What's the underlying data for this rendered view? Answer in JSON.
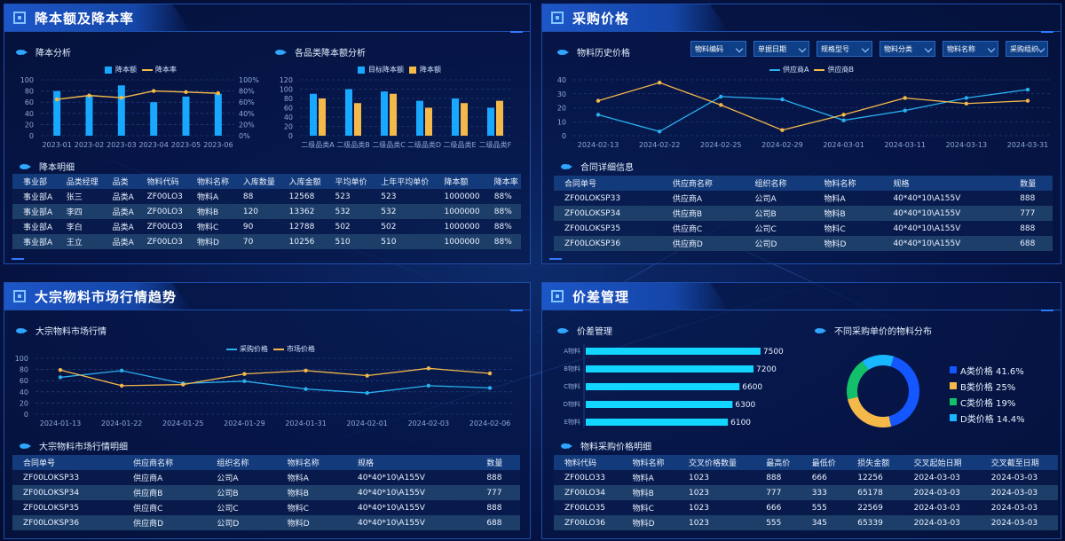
{
  "colors": {
    "blue": "#18a8ff",
    "yellow": "#f5b94a",
    "lineBlue": "#2ab0f0",
    "lineYellow": "#f5b94a",
    "barCyan": "#12d6ff"
  },
  "panels": {
    "p1_title": "降本额及降本率",
    "p2_title": "采购价格",
    "p3_title": "大宗物料市场行情趋势",
    "p4_title": "价差管理"
  },
  "subtitles": {
    "cost_analysis": "降本分析",
    "category_analysis": "各品类降本额分析",
    "cost_detail": "降本明细",
    "material_history": "物料历史价格",
    "contract_detail": "合同详细信息",
    "market_trend": "大宗物料市场行情",
    "market_detail": "大宗物料市场行情明细",
    "price_diff": "价差管理",
    "price_distribution": "不同采购单价的物料分布",
    "purchase_detail": "物料采购价格明细"
  },
  "filters": [
    "物料编码",
    "单据日期",
    "规格型号",
    "物料分类",
    "物料名称",
    "采购组织"
  ],
  "icons": {
    "panel": "square-target-icon",
    "subtitle": "fish-arrow-icon",
    "dropdown": "chevron-down-icon"
  },
  "chart_data": [
    {
      "id": "cost_analysis",
      "type": "bar",
      "categories": [
        "2023-01",
        "2023-02",
        "2023-03",
        "2023-04",
        "2023-05",
        "2023-06"
      ],
      "series": [
        {
          "name": "降本额",
          "type": "bar",
          "values": [
            80,
            72,
            90,
            60,
            70,
            75
          ]
        },
        {
          "name": "降本率",
          "type": "line",
          "values": [
            65,
            72,
            68,
            80,
            78,
            76
          ]
        }
      ],
      "yticks_left": [
        "0",
        "20",
        "40",
        "60",
        "80",
        "100"
      ],
      "yticks_right": [
        "0%",
        "20%",
        "40%",
        "60%",
        "80%",
        "100%"
      ],
      "ylim": [
        0,
        100
      ]
    },
    {
      "id": "category_analysis",
      "type": "bar",
      "categories": [
        "二级品类A",
        "二级品类B",
        "二级品类C",
        "二级品类D",
        "二级品类E",
        "二级品类F"
      ],
      "series": [
        {
          "name": "目标降本额",
          "values": [
            90,
            100,
            95,
            75,
            80,
            60
          ]
        },
        {
          "name": "降本额",
          "values": [
            80,
            70,
            90,
            60,
            70,
            75
          ]
        }
      ],
      "yticks": [
        "0",
        "20",
        "40",
        "60",
        "80",
        "100",
        "120"
      ],
      "ylim": [
        0,
        120
      ]
    },
    {
      "id": "material_history",
      "type": "line",
      "categories": [
        "2024-02-13",
        "2024-02-22",
        "2024-02-25",
        "2024-02-29",
        "2024-03-01",
        "2024-03-11",
        "2024-03-13",
        "2024-03-31"
      ],
      "series": [
        {
          "name": "供应商A",
          "values": [
            15,
            3,
            28,
            26,
            11,
            18,
            27,
            33
          ]
        },
        {
          "name": "供应商B",
          "values": [
            25,
            38,
            22,
            4,
            15,
            27,
            23,
            25
          ]
        }
      ],
      "yticks": [
        "0",
        "10",
        "20",
        "30",
        "40"
      ],
      "ylim": [
        0,
        40
      ]
    },
    {
      "id": "market_trend",
      "type": "line",
      "categories": [
        "2024-01-13",
        "2024-01-22",
        "2024-01-25",
        "2024-01-29",
        "2024-01-31",
        "2024-02-01",
        "2024-02-03",
        "2024-02-06"
      ],
      "series": [
        {
          "name": "采购价格",
          "values": [
            66,
            78,
            55,
            59,
            45,
            38,
            51,
            47
          ]
        },
        {
          "name": "市场价格",
          "values": [
            79,
            51,
            53,
            72,
            78,
            69,
            82,
            73
          ]
        }
      ],
      "yticks": [
        "0",
        "20",
        "40",
        "60",
        "80",
        "100"
      ],
      "ylim": [
        0,
        100
      ]
    },
    {
      "id": "price_diff",
      "type": "bar",
      "orientation": "horizontal",
      "categories": [
        "A物料",
        "B物料",
        "C物料",
        "D物料",
        "E物料"
      ],
      "values": [
        7500,
        7200,
        6600,
        6300,
        6100
      ],
      "labels": [
        "7500",
        "7200",
        "6600",
        "6300",
        "6100"
      ],
      "xlim": [
        0,
        8000
      ]
    },
    {
      "id": "price_distribution",
      "type": "pie",
      "labels": [
        "A类价格",
        "B类价格",
        "C类价格",
        "D类价格"
      ],
      "values": [
        41.6,
        25,
        19,
        14.4
      ],
      "display": [
        "41.6%",
        "25%",
        "19%",
        "14.4%"
      ],
      "colors": [
        "#1456ff",
        "#f5b94a",
        "#12c06a",
        "#18b7ff"
      ]
    }
  ],
  "tables": {
    "cost_detail": {
      "headers": [
        "事业部",
        "品类经理",
        "品类",
        "物料代码",
        "物料名称",
        "入库数量",
        "入库金额",
        "平均单价",
        "上年平均单价",
        "降本额",
        "降本率"
      ],
      "rows": [
        [
          "事业部A",
          "张三",
          "品类A",
          "ZF00LO3",
          "物料A",
          "88",
          "12568",
          "523",
          "523",
          "1000000",
          "88%"
        ],
        [
          "事业部A",
          "李四",
          "品类A",
          "ZF00LO3",
          "物料B",
          "120",
          "13362",
          "532",
          "532",
          "1000000",
          "88%"
        ],
        [
          "事业部A",
          "李白",
          "品类A",
          "ZF00LO3",
          "物料C",
          "90",
          "12788",
          "502",
          "502",
          "1000000",
          "88%"
        ],
        [
          "事业部A",
          "王立",
          "品类A",
          "ZF00LO3",
          "物料D",
          "70",
          "10256",
          "510",
          "510",
          "1000000",
          "88%"
        ]
      ]
    },
    "contract_detail": {
      "headers": [
        "合同单号",
        "供应商名称",
        "组织名称",
        "物料名称",
        "规格",
        "数量"
      ],
      "rows": [
        [
          "ZF00LOKSP33",
          "供应商A",
          "公司A",
          "物料A",
          "40*40*10\\A155V",
          "888"
        ],
        [
          "ZF00LOKSP34",
          "供应商B",
          "公司B",
          "物料B",
          "40*40*10\\A155V",
          "777"
        ],
        [
          "ZF00LOKSP35",
          "供应商C",
          "公司C",
          "物料C",
          "40*40*10\\A155V",
          "888"
        ],
        [
          "ZF00LOKSP36",
          "供应商D",
          "公司D",
          "物料D",
          "40*40*10\\A155V",
          "688"
        ]
      ]
    },
    "market_detail": {
      "headers": [
        "合同单号",
        "供应商名称",
        "组织名称",
        "物料名称",
        "规格",
        "数量"
      ],
      "rows": [
        [
          "ZF00LOKSP33",
          "供应商A",
          "公司A",
          "物料A",
          "40*40*10\\A155V",
          "888"
        ],
        [
          "ZF00LOKSP34",
          "供应商B",
          "公司B",
          "物料B",
          "40*40*10\\A155V",
          "777"
        ],
        [
          "ZF00LOKSP35",
          "供应商C",
          "公司C",
          "物料C",
          "40*40*10\\A155V",
          "888"
        ],
        [
          "ZF00LOKSP36",
          "供应商D",
          "公司D",
          "物料D",
          "40*40*10\\A155V",
          "688"
        ]
      ]
    },
    "purchase_detail": {
      "headers": [
        "物料代码",
        "物料名称",
        "交叉价格数量",
        "最高价",
        "最低价",
        "损失金额",
        "交叉起始日期",
        "交叉截至日期"
      ],
      "rows": [
        [
          "ZF00LO33",
          "物料A",
          "1023",
          "888",
          "666",
          "12256",
          "2024-03-03",
          "2024-03-03"
        ],
        [
          "ZF00LO34",
          "物料B",
          "1023",
          "777",
          "333",
          "65178",
          "2024-03-03",
          "2024-03-03"
        ],
        [
          "ZF00LO35",
          "物料C",
          "1023",
          "666",
          "555",
          "22569",
          "2024-03-03",
          "2024-03-03"
        ],
        [
          "ZF00LO36",
          "物料D",
          "1023",
          "555",
          "345",
          "65339",
          "2024-03-03",
          "2024-03-03"
        ]
      ]
    }
  }
}
